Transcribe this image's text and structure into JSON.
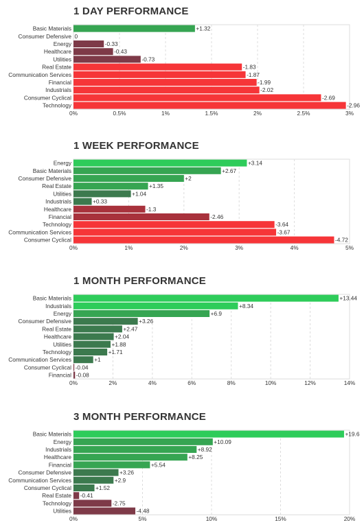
{
  "colors": {
    "pos_strong": "#2ecc5a",
    "pos_mid": "#36a552",
    "pos_weak": "#3c7a4e",
    "neg_weak": "#7e3a48",
    "neg_mid": "#a8323c",
    "neg_strong": "#f63538",
    "grid": "#dcdcdc",
    "label": "#333333"
  },
  "chart_data": [
    {
      "type": "bar",
      "orientation": "horizontal",
      "title": "1 DAY PERFORMANCE",
      "categories": [
        "Basic Materials",
        "Consumer Defensive",
        "Energy",
        "Healthcare",
        "Utilities",
        "Real Estate",
        "Communication Services",
        "Financial",
        "Industrials",
        "Consumer Cyclical",
        "Technology"
      ],
      "values": [
        1.32,
        0,
        -0.33,
        -0.43,
        -0.73,
        -1.83,
        -1.87,
        -1.99,
        -2.02,
        -2.69,
        -2.96
      ],
      "value_labels": [
        "+1.32",
        "0",
        "-0.33",
        "-0.43",
        "-0.73",
        "-1.83",
        "-1.87",
        "-1.99",
        "-2.02",
        "-2.69",
        "-2.96"
      ],
      "xlim": [
        0,
        3
      ],
      "ticks": [
        0,
        0.5,
        1,
        1.5,
        2,
        2.5,
        3
      ],
      "tick_labels": [
        "0%",
        "0.5%",
        "1%",
        "1.5%",
        "2%",
        "2.5%",
        "3%"
      ],
      "grid": true
    },
    {
      "type": "bar",
      "orientation": "horizontal",
      "title": "1 WEEK PERFORMANCE",
      "categories": [
        "Energy",
        "Basic Materials",
        "Consumer Defensive",
        "Real Estate",
        "Utilities",
        "Industrials",
        "Healthcare",
        "Financial",
        "Technology",
        "Communication Services",
        "Consumer Cyclical"
      ],
      "values": [
        3.14,
        2.67,
        2,
        1.35,
        1.04,
        0.33,
        -1.3,
        -2.46,
        -3.64,
        -3.67,
        -4.72
      ],
      "value_labels": [
        "+3.14",
        "+2.67",
        "+2",
        "+1.35",
        "+1.04",
        "+0.33",
        "-1.3",
        "-2.46",
        "-3.64",
        "-3.67",
        "-4.72"
      ],
      "xlim": [
        0,
        5
      ],
      "ticks": [
        0,
        1,
        2,
        3,
        4,
        5
      ],
      "tick_labels": [
        "0%",
        "1%",
        "2%",
        "3%",
        "4%",
        "5%"
      ],
      "grid": true
    },
    {
      "type": "bar",
      "orientation": "horizontal",
      "title": "1 MONTH PERFORMANCE",
      "categories": [
        "Basic Materials",
        "Industrials",
        "Energy",
        "Consumer Defensive",
        "Real Estate",
        "Healthcare",
        "Utilities",
        "Technology",
        "Communication Services",
        "Consumer Cyclical",
        "Financial"
      ],
      "values": [
        13.44,
        8.34,
        6.9,
        3.26,
        2.47,
        2.04,
        1.88,
        1.71,
        1,
        -0.04,
        -0.08
      ],
      "value_labels": [
        "+13.44",
        "+8.34",
        "+6.9",
        "+3.26",
        "+2.47",
        "+2.04",
        "+1.88",
        "+1.71",
        "+1",
        "-0.04",
        "-0.08"
      ],
      "xlim": [
        0,
        14
      ],
      "ticks": [
        0,
        2,
        4,
        6,
        8,
        10,
        12,
        14
      ],
      "tick_labels": [
        "0%",
        "2%",
        "4%",
        "6%",
        "8%",
        "10%",
        "12%",
        "14%"
      ],
      "grid": true
    },
    {
      "type": "bar",
      "orientation": "horizontal",
      "title": "3 MONTH PERFORMANCE",
      "categories": [
        "Basic Materials",
        "Energy",
        "Industrials",
        "Healthcare",
        "Financial",
        "Consumer Defensive",
        "Communication Services",
        "Consumer Cyclical",
        "Real Estate",
        "Technology",
        "Utilities"
      ],
      "values": [
        19.6,
        10.09,
        8.92,
        8.25,
        5.54,
        3.26,
        2.9,
        1.52,
        -0.41,
        -2.75,
        -4.48
      ],
      "value_labels": [
        "+19.6",
        "+10.09",
        "+8.92",
        "+8.25",
        "+5.54",
        "+3.26",
        "+2.9",
        "+1.52",
        "-0.41",
        "-2.75",
        "-4.48"
      ],
      "xlim": [
        0,
        20
      ],
      "ticks": [
        0,
        5,
        10,
        15,
        20
      ],
      "tick_labels": [
        "0%",
        "5%",
        "10%",
        "15%",
        "20%"
      ],
      "grid": true
    }
  ]
}
